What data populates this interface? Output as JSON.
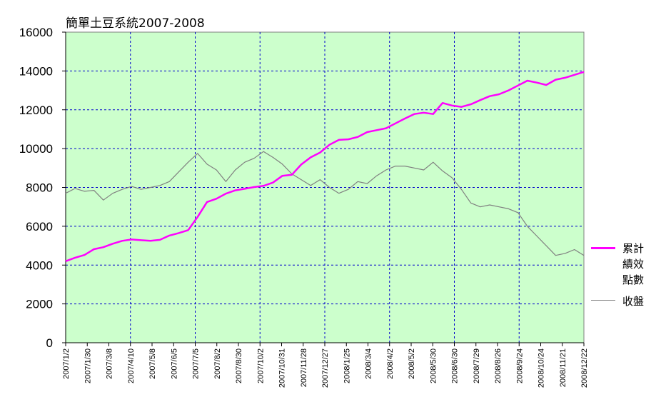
{
  "chart_data": {
    "type": "line",
    "title": "簡單土豆系統2007-2008",
    "xlabel": "",
    "ylabel": "",
    "ylim": [
      0,
      16000
    ],
    "yticks": [
      0,
      2000,
      4000,
      6000,
      8000,
      10000,
      12000,
      14000,
      16000
    ],
    "x_ticks": [
      "2007/1/2",
      "2007/1/30",
      "2007/3/8",
      "2007/4/10",
      "2007/5/8",
      "2007/6/5",
      "2007/7/5",
      "2007/8/2",
      "2007/8/30",
      "2007/10/2",
      "2007/10/31",
      "2007/11/28",
      "2007/12/27",
      "2008/1/25",
      "2008/3/4",
      "2008/4/2",
      "2008/5/2",
      "2008/5/30",
      "2008/6/30",
      "2008/7/29",
      "2008/8/26",
      "2008/9/24",
      "2008/10/24",
      "2008/11/21",
      "2008/12/22"
    ],
    "grid": true,
    "legend": "right",
    "background_color": "#ccffcc",
    "series": [
      {
        "name": "累計績效點數",
        "color": "#ff00ff",
        "values": [
          4200,
          4380,
          4520,
          4820,
          4920,
          5100,
          5250,
          5320,
          5280,
          5250,
          5300,
          5520,
          5650,
          5800,
          6480,
          7250,
          7420,
          7680,
          7850,
          7930,
          8020,
          8080,
          8250,
          8600,
          8650,
          9180,
          9550,
          9800,
          10200,
          10450,
          10480,
          10600,
          10850,
          10950,
          11050,
          11300,
          11550,
          11780,
          11850,
          11780,
          12350,
          12220,
          12150,
          12280,
          12500,
          12700,
          12800,
          13000,
          13250,
          13500,
          13400,
          13280,
          13550,
          13650,
          13800,
          13950
        ]
      },
      {
        "name": "收盤",
        "color": "#808080",
        "values": [
          7700,
          7950,
          7800,
          7850,
          7350,
          7700,
          7900,
          8050,
          7900,
          8000,
          8100,
          8300,
          8800,
          9300,
          9750,
          9200,
          8900,
          8300,
          8900,
          9300,
          9500,
          9850,
          9550,
          9200,
          8700,
          8400,
          8100,
          8400,
          8000,
          7700,
          7900,
          8300,
          8200,
          8600,
          8900,
          9100,
          9100,
          9000,
          8900,
          9300,
          8850,
          8500,
          7900,
          7200,
          7000,
          7100,
          7000,
          6900,
          6700,
          6000,
          5500,
          5000,
          4500,
          4600,
          4800,
          4500
        ]
      }
    ]
  }
}
